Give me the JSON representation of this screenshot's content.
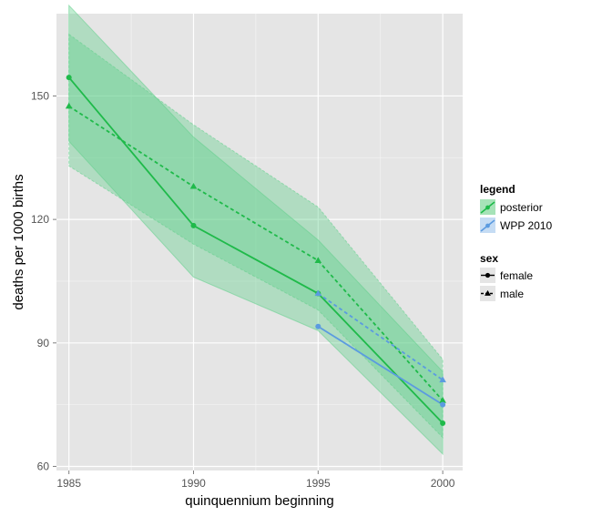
{
  "chart_data": {
    "type": "line",
    "xlabel": "quinquennium beginning",
    "ylabel": "deaths per 1000 births",
    "x": [
      1985,
      1990,
      1995,
      2000
    ],
    "xlim": [
      1984.5,
      2000.8
    ],
    "ylim": [
      59,
      170
    ],
    "x_ticks": [
      "1985",
      "1990",
      "1995",
      "2000"
    ],
    "y_ticks": [
      "60",
      "90",
      "120",
      "150"
    ],
    "y_tick_values": [
      60,
      90,
      120,
      150
    ],
    "grid": true,
    "legend_position": "right",
    "legend": {
      "title": "legend",
      "entries": [
        "posterior",
        "WPP 2010"
      ]
    },
    "sex_legend": {
      "title": "sex",
      "entries": [
        "female",
        "male"
      ]
    },
    "colors": {
      "posterior": "#1fba4a",
      "wpp": "#5b9be0",
      "band": "#62d08c",
      "panel": "#e5e5e5",
      "grid": "#ffffff"
    },
    "bands": [
      {
        "source": "posterior",
        "sex": "female",
        "x": [
          1985,
          1990,
          1995,
          2000
        ],
        "lower": [
          139,
          106,
          93,
          63
        ],
        "upper": [
          172,
          140,
          115,
          83
        ]
      },
      {
        "source": "posterior",
        "sex": "male",
        "x": [
          1985,
          1990,
          1995,
          2000
        ],
        "lower": [
          133,
          114,
          98,
          67
        ],
        "upper": [
          165,
          143,
          123,
          86
        ]
      }
    ],
    "series": [
      {
        "source": "posterior",
        "sex": "female",
        "x": [
          1985,
          1990,
          1995,
          2000
        ],
        "y": [
          154.5,
          118.5,
          102,
          70.5
        ]
      },
      {
        "source": "posterior",
        "sex": "male",
        "x": [
          1985,
          1990,
          1995,
          2000
        ],
        "y": [
          147.5,
          128,
          110,
          76
        ]
      },
      {
        "source": "WPP 2010",
        "sex": "female",
        "x": [
          1995,
          2000
        ],
        "y": [
          94,
          75
        ]
      },
      {
        "source": "WPP 2010",
        "sex": "male",
        "x": [
          1995,
          2000
        ],
        "y": [
          102,
          81
        ]
      }
    ]
  }
}
